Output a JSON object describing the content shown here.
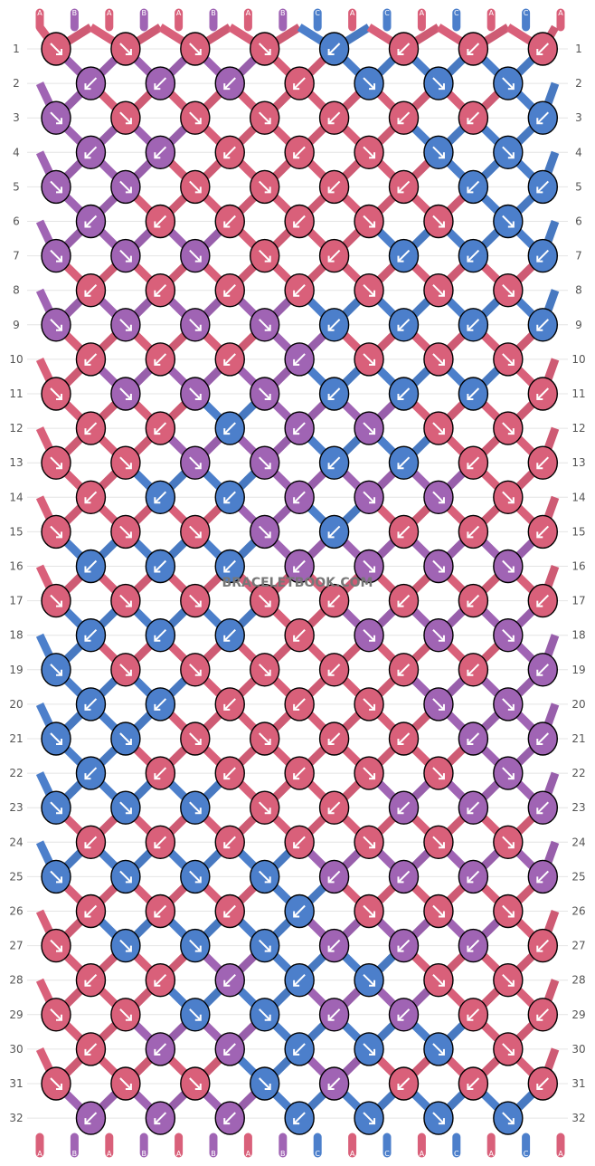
{
  "watermark": "BRACELETBOOK.COM",
  "colors": {
    "A": "#d9607a",
    "B": "#a064b4",
    "C": "#4c7fcb"
  },
  "strands": [
    "A",
    "B",
    "A",
    "B",
    "A",
    "B",
    "A",
    "B",
    "C",
    "A",
    "C",
    "A",
    "C",
    "A",
    "C",
    "A"
  ],
  "row_labels": [
    "1",
    "2",
    "3",
    "4",
    "5",
    "6",
    "7",
    "8",
    "9",
    "10",
    "11",
    "12",
    "13",
    "14",
    "15",
    "16",
    "17",
    "18",
    "19",
    "20",
    "21",
    "22",
    "23",
    "24",
    "25",
    "26",
    "27",
    "28",
    "29",
    "30",
    "31",
    "32"
  ],
  "rows": [
    [
      "A↘",
      "A↘",
      "A↘",
      "A↘",
      "C↙",
      "A↙",
      "A↙",
      "A↙"
    ],
    [
      "B↙",
      "B↙",
      "B↙",
      "A↙",
      "C↘",
      "C↘",
      "C↘"
    ],
    [
      "B↘",
      "A↘",
      "A↘",
      "A↘",
      "A↙",
      "A↙",
      "A↙",
      "C↙"
    ],
    [
      "B↙",
      "B↙",
      "A↙",
      "A↙",
      "A↘",
      "C↘",
      "C↘"
    ],
    [
      "B↘",
      "B↘",
      "A↘",
      "A↘",
      "A↙",
      "A↙",
      "C↙",
      "C↙"
    ],
    [
      "B↙",
      "A↙",
      "A↙",
      "A↙",
      "A↘",
      "A↘",
      "C↘"
    ],
    [
      "B↘",
      "B↘",
      "B↘",
      "A↘",
      "A↙",
      "C↙",
      "C↙",
      "C↙"
    ],
    [
      "A↙",
      "A↙",
      "A↙",
      "A↙",
      "A↘",
      "A↘",
      "A↘"
    ],
    [
      "B↘",
      "B↘",
      "B↘",
      "B↘",
      "C↙",
      "C↙",
      "C↙",
      "C↙"
    ],
    [
      "A↙",
      "A↙",
      "A↙",
      "B↙",
      "A↘",
      "A↘",
      "A↘"
    ],
    [
      "A↘",
      "B↘",
      "B↘",
      "B↘",
      "C↙",
      "C↙",
      "C↙",
      "A↙"
    ],
    [
      "A↙",
      "A↙",
      "C↙",
      "B↙",
      "B↘",
      "A↘",
      "A↘"
    ],
    [
      "A↘",
      "A↘",
      "B↘",
      "B↘",
      "C↙",
      "C↙",
      "A↙",
      "A↙"
    ],
    [
      "A↙",
      "C↙",
      "C↙",
      "B↙",
      "B↘",
      "B↘",
      "A↘"
    ],
    [
      "A↘",
      "A↘",
      "A↘",
      "B↘",
      "C↙",
      "A↙",
      "A↙",
      "A↙"
    ],
    [
      "C↙",
      "C↙",
      "C↙",
      "B↙",
      "B↘",
      "B↘",
      "B↘"
    ],
    [
      "A↘",
      "A↘",
      "A↘",
      "A↘",
      "A↙",
      "A↙",
      "A↙",
      "A↙"
    ],
    [
      "C↙",
      "C↙",
      "C↙",
      "A↙",
      "B↘",
      "B↘",
      "B↘"
    ],
    [
      "C↘",
      "A↘",
      "A↘",
      "A↘",
      "A↙",
      "A↙",
      "A↙",
      "B↙"
    ],
    [
      "C↙",
      "C↙",
      "A↙",
      "A↙",
      "A↘",
      "B↘",
      "B↘"
    ],
    [
      "C↘",
      "C↘",
      "A↘",
      "A↘",
      "A↙",
      "A↙",
      "B↙",
      "B↙"
    ],
    [
      "C↙",
      "A↙",
      "A↙",
      "A↙",
      "A↘",
      "A↘",
      "B↘"
    ],
    [
      "C↘",
      "C↘",
      "C↘",
      "A↘",
      "A↙",
      "B↙",
      "B↙",
      "B↙"
    ],
    [
      "A↙",
      "A↙",
      "A↙",
      "A↙",
      "A↘",
      "A↘",
      "A↘"
    ],
    [
      "C↘",
      "C↘",
      "C↘",
      "C↘",
      "B↙",
      "B↙",
      "B↙",
      "B↙"
    ],
    [
      "A↙",
      "A↙",
      "A↙",
      "C↙",
      "A↘",
      "A↘",
      "A↘"
    ],
    [
      "A↘",
      "C↘",
      "C↘",
      "C↘",
      "B↙",
      "B↙",
      "B↙",
      "A↙"
    ],
    [
      "A↙",
      "A↙",
      "B↙",
      "C↙",
      "C↘",
      "A↘",
      "A↘"
    ],
    [
      "A↘",
      "A↘",
      "C↘",
      "C↘",
      "B↙",
      "B↙",
      "A↙",
      "A↙"
    ],
    [
      "A↙",
      "B↙",
      "B↙",
      "C↙",
      "C↘",
      "C↘",
      "A↘"
    ],
    [
      "A↘",
      "A↘",
      "A↘",
      "C↘",
      "B↙",
      "A↙",
      "A↙",
      "A↙"
    ],
    [
      "B↙",
      "B↙",
      "B↙",
      "C↙",
      "C↘",
      "C↘",
      "C↘"
    ]
  ]
}
